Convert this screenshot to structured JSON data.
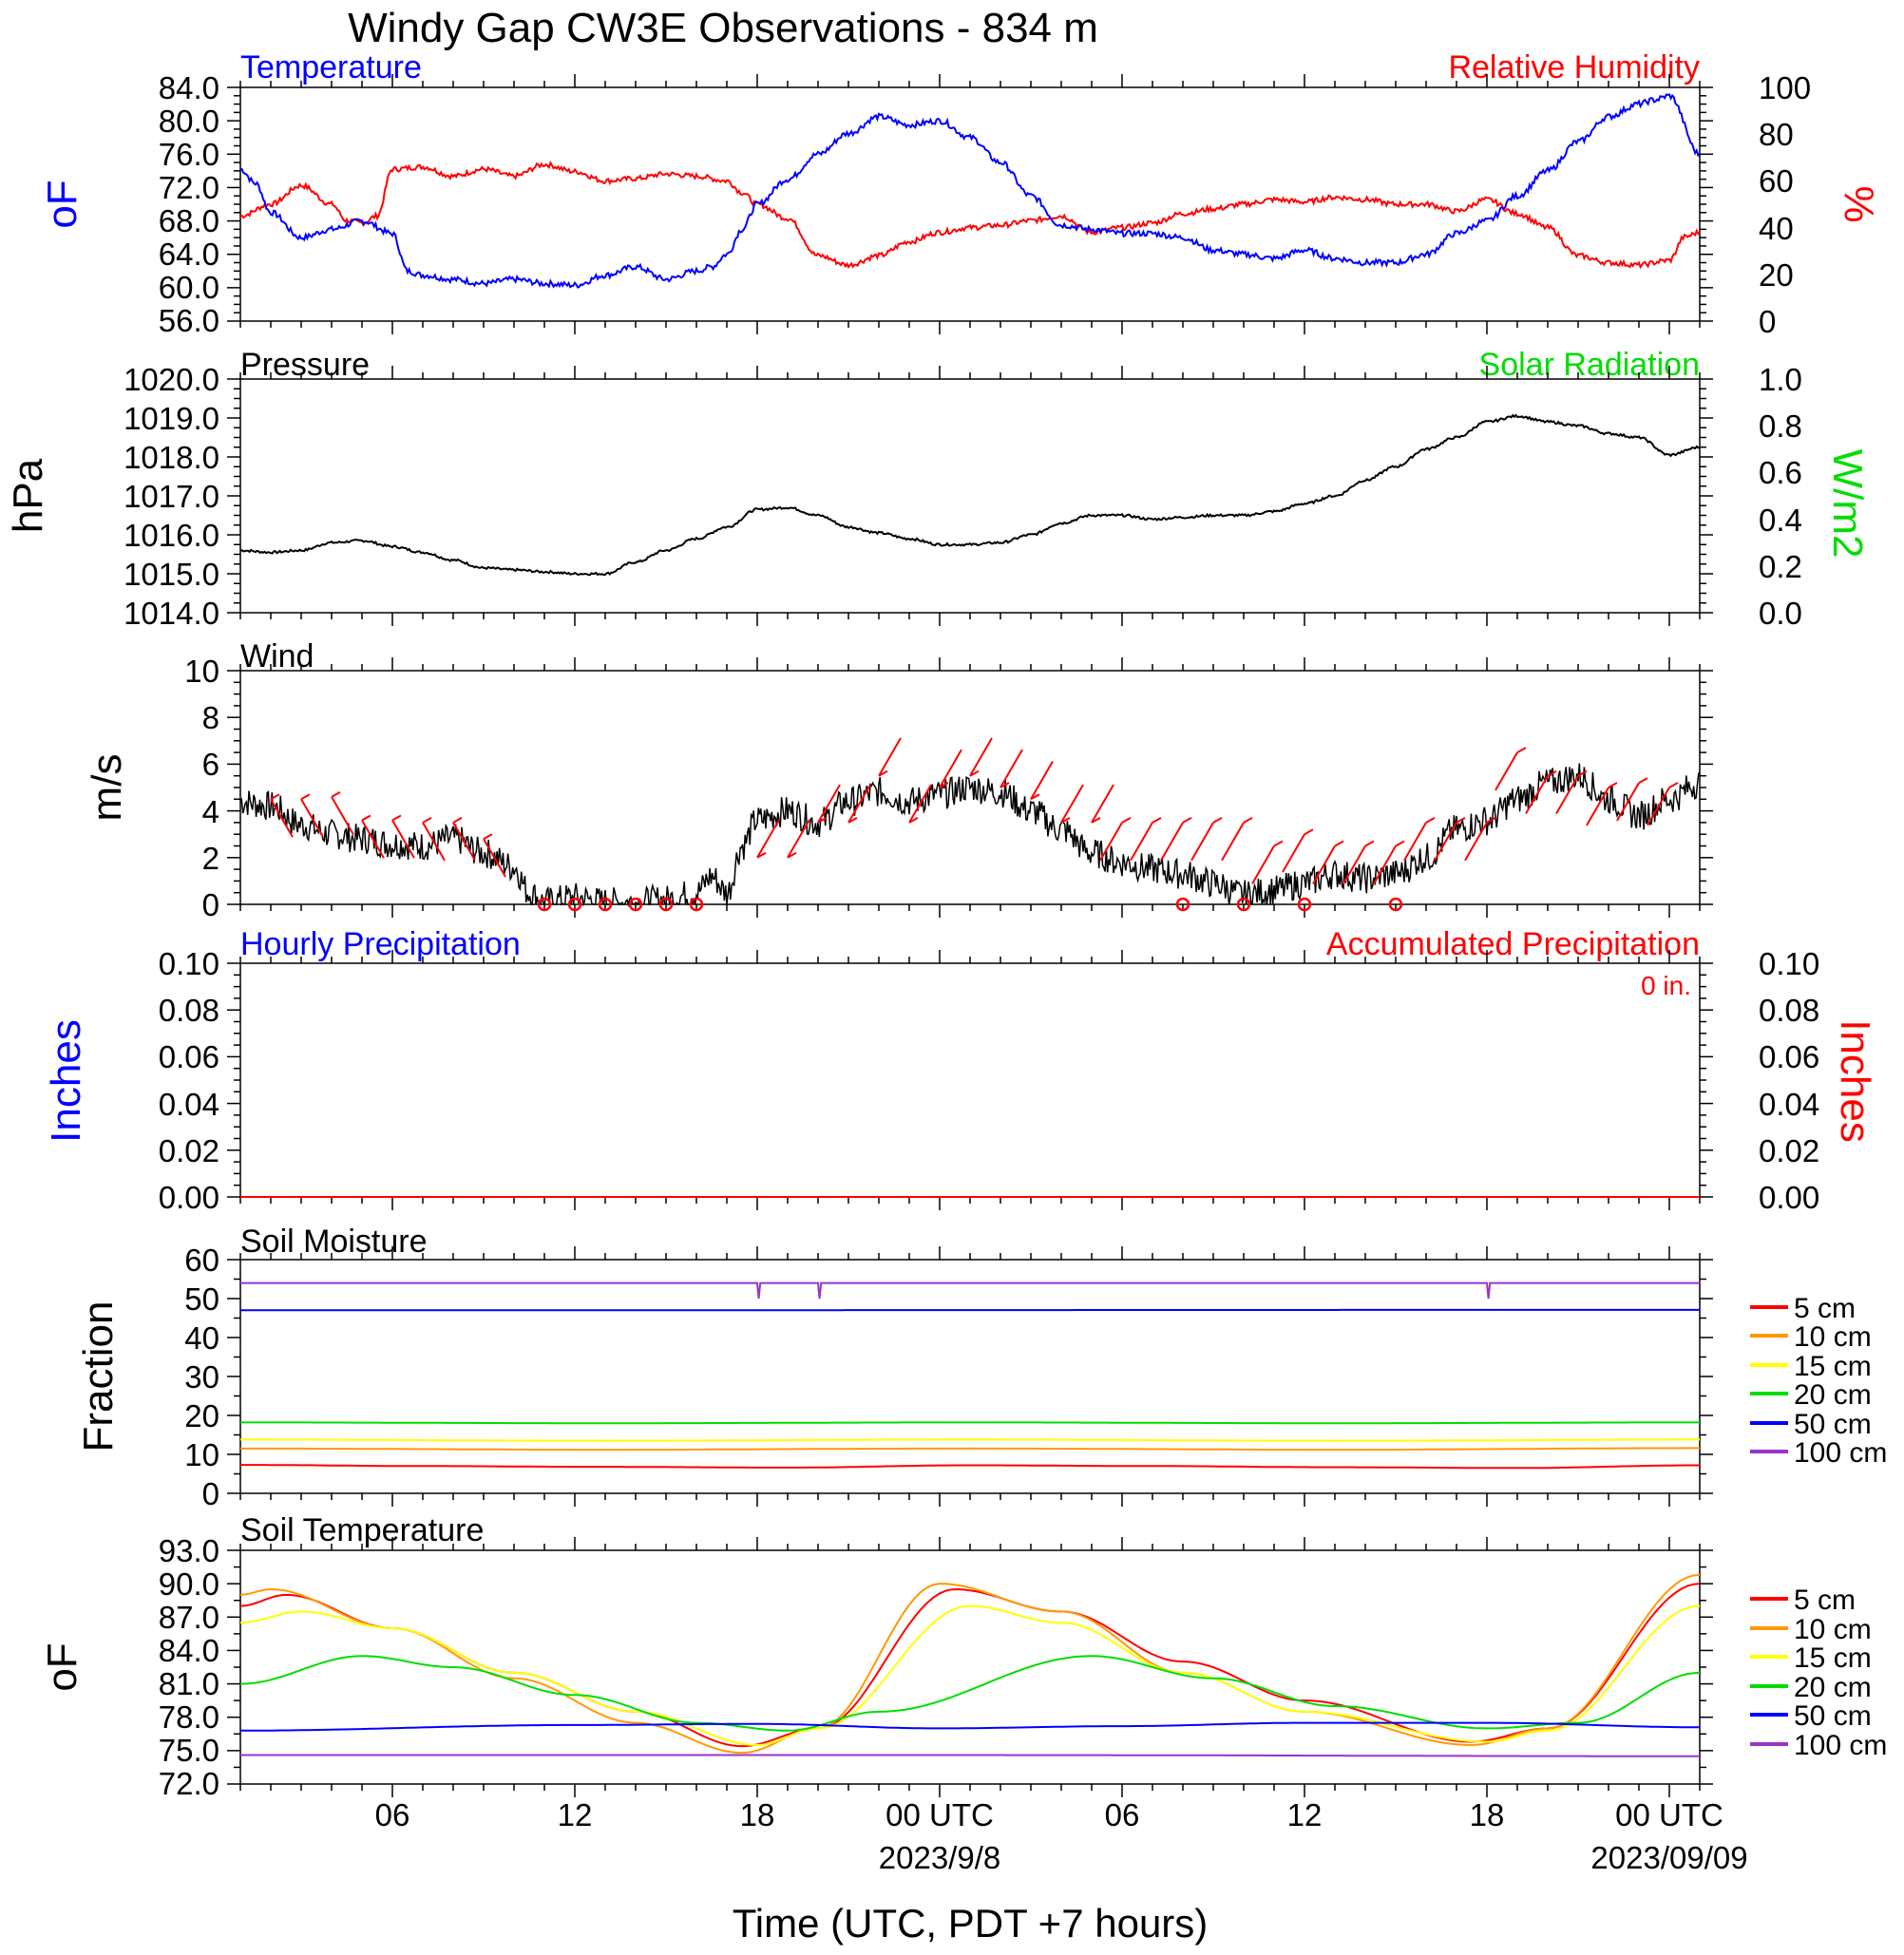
{
  "title": "Windy Gap CW3E Observations - 834 m",
  "x_axis": {
    "label": "Time (UTC, PDT +7 hours)",
    "tick_labels": [
      "06",
      "12",
      "18",
      "00 UTC",
      "06",
      "12",
      "18",
      "00 UTC"
    ],
    "tick_hours": [
      6,
      12,
      18,
      24,
      30,
      36,
      42,
      48
    ],
    "date_labels": [
      "2023/9/8",
      "2023/09/09"
    ],
    "date_label_hours": [
      24,
      48
    ],
    "range_hours": [
      1,
      49
    ]
  },
  "colors": {
    "temperature": "#0000ff",
    "relative_humidity": "#ff0000",
    "pressure": "#000000",
    "solar": "#00dd00",
    "wind_speed": "#000000",
    "wind_barb": "#ff0000",
    "hourly_precip": "#0000ff",
    "accum_precip": "#ff0000",
    "depth_5": "#ff0000",
    "depth_10": "#ff9900",
    "depth_15": "#ffff00",
    "depth_20": "#00dd00",
    "depth_50": "#0000ff",
    "depth_100": "#9933cc"
  },
  "panels": {
    "temp_rh": {
      "left_title": "Temperature",
      "right_title": "Relative Humidity",
      "left_unit": "oF",
      "right_unit": "%",
      "left_ticks": [
        "84.0",
        "80.0",
        "76.0",
        "72.0",
        "68.0",
        "64.0",
        "60.0",
        "56.0"
      ],
      "right_ticks": [
        "100",
        "80",
        "60",
        "40",
        "20",
        "0"
      ]
    },
    "pressure": {
      "left_title": "Pressure",
      "right_title": "Solar Radiation",
      "left_unit": "hPa",
      "right_unit": "W/m2",
      "left_ticks": [
        "1020.0",
        "1019.0",
        "1018.0",
        "1017.0",
        "1016.0",
        "1015.0",
        "1014.0"
      ],
      "right_ticks": [
        "1.0",
        "0.8",
        "0.6",
        "0.4",
        "0.2",
        "0.0"
      ]
    },
    "wind": {
      "left_title": "Wind",
      "left_unit": "m/s",
      "left_ticks": [
        "10",
        "8",
        "6",
        "4",
        "2",
        "0"
      ]
    },
    "precip": {
      "left_title": "Hourly Precipitation",
      "right_title": "Accumulated Precipitation",
      "total_label": "0 in.",
      "left_unit": "Inches",
      "right_unit": "Inches",
      "left_ticks": [
        "0.10",
        "0.08",
        "0.06",
        "0.04",
        "0.02",
        "0.00"
      ],
      "right_ticks": [
        "0.10",
        "0.08",
        "0.06",
        "0.04",
        "0.02",
        "0.00"
      ]
    },
    "soil_moisture": {
      "left_title": "Soil Moisture",
      "left_unit": "Fraction",
      "left_ticks": [
        "60",
        "50",
        "40",
        "30",
        "20",
        "10",
        "0"
      ],
      "legend": [
        "5 cm",
        "10 cm",
        "15 cm",
        "20 cm",
        "50 cm",
        "100 cm"
      ]
    },
    "soil_temp": {
      "left_title": "Soil Temperature",
      "left_unit": "oF",
      "left_ticks": [
        "93.0",
        "90.0",
        "87.0",
        "84.0",
        "81.0",
        "78.0",
        "75.0",
        "72.0"
      ],
      "legend": [
        "5 cm",
        "10 cm",
        "15 cm",
        "20 cm",
        "50 cm",
        "100 cm"
      ]
    }
  },
  "chart_data": [
    {
      "type": "line",
      "title": "Temperature",
      "x_unit": "hours since 2023-09-07 00 UTC",
      "ylabel": "oF",
      "ylim": [
        56,
        84
      ],
      "y2label": "%",
      "y2lim": [
        0,
        100
      ],
      "series": [
        {
          "name": "Temperature",
          "axis": "left",
          "x": [
            1,
            1.5,
            2,
            3,
            4,
            5,
            6,
            6.5,
            7,
            8,
            9,
            10,
            11,
            12,
            13,
            14,
            15,
            16,
            16.5,
            17,
            17.5,
            18,
            19,
            20,
            21,
            22,
            23,
            24,
            25,
            26,
            27,
            28,
            29,
            30,
            31,
            32,
            33,
            34,
            35,
            36,
            37,
            38,
            39,
            40,
            41,
            42,
            43,
            44,
            45,
            46,
            47,
            47.5,
            48,
            49
          ],
          "values": [
            74.2,
            72.5,
            69,
            66,
            67,
            68,
            66.5,
            62,
            61.5,
            61,
            60.5,
            61,
            60.5,
            60.3,
            61.5,
            62.5,
            61,
            62,
            62.5,
            64,
            67,
            70,
            73,
            76,
            78.5,
            80.5,
            79.5,
            80,
            78,
            75,
            71,
            67.5,
            67,
            66.5,
            66.5,
            66,
            64.5,
            64,
            63.5,
            64.5,
            63.5,
            63,
            63,
            64,
            66.5,
            68,
            71,
            74,
            77.5,
            80.5,
            82,
            82.5,
            83,
            76
          ]
        },
        {
          "name": "Relative Humidity",
          "axis": "right",
          "x": [
            1,
            2,
            3,
            4,
            4.5,
            5,
            5.5,
            6,
            7,
            8,
            9,
            10,
            11,
            12,
            13,
            14,
            15,
            16,
            17,
            17.5,
            18,
            19,
            20,
            21,
            22,
            23,
            24,
            25,
            26,
            27,
            28,
            29,
            30,
            31,
            32,
            33,
            34,
            35,
            36,
            37,
            38,
            39,
            40,
            41,
            42,
            43,
            44,
            45,
            46,
            47,
            48,
            48.5,
            49
          ],
          "values": [
            45,
            50,
            58,
            50,
            43,
            42,
            45,
            65,
            66,
            62,
            65,
            62,
            67,
            64,
            60,
            61,
            63,
            62,
            60,
            55,
            50,
            44,
            28,
            24,
            28,
            34,
            38,
            40,
            41,
            43,
            45,
            38,
            40,
            42,
            46,
            48,
            50,
            52,
            51,
            53,
            52,
            50,
            50,
            47,
            52,
            46,
            40,
            28,
            25,
            24,
            26,
            36,
            38
          ]
        }
      ]
    },
    {
      "type": "line",
      "title": "Pressure",
      "x_unit": "hours since 2023-09-07 00 UTC",
      "ylabel": "hPa",
      "ylim": [
        1014,
        1020
      ],
      "y2label": "W/m2",
      "y2lim": [
        0,
        1
      ],
      "series": [
        {
          "name": "Pressure",
          "axis": "left",
          "x": [
            1,
            2,
            3,
            4,
            5,
            6,
            7,
            8,
            9,
            10,
            11,
            12,
            13,
            14,
            15,
            16,
            17,
            18,
            19,
            20,
            21,
            22,
            23,
            24,
            25,
            26,
            27,
            28,
            29,
            30,
            31,
            32,
            33,
            34,
            35,
            36,
            37,
            38,
            39,
            40,
            41,
            42,
            43,
            44,
            45,
            46,
            47,
            48,
            49
          ],
          "values": [
            1015.6,
            1015.55,
            1015.6,
            1015.8,
            1015.85,
            1015.7,
            1015.55,
            1015.35,
            1015.15,
            1015.1,
            1015.05,
            1015.0,
            1015.0,
            1015.3,
            1015.6,
            1015.9,
            1016.2,
            1016.65,
            1016.7,
            1016.5,
            1016.2,
            1016.05,
            1015.9,
            1015.75,
            1015.75,
            1015.8,
            1016.0,
            1016.3,
            1016.5,
            1016.5,
            1016.4,
            1016.45,
            1016.5,
            1016.5,
            1016.6,
            1016.8,
            1017.0,
            1017.4,
            1017.75,
            1018.2,
            1018.5,
            1018.9,
            1019.05,
            1018.9,
            1018.8,
            1018.6,
            1018.5,
            1018.05,
            1018.25
          ]
        }
      ]
    },
    {
      "type": "line",
      "title": "Wind",
      "x_unit": "hours since 2023-09-07 00 UTC",
      "ylabel": "m/s",
      "ylim": [
        0,
        10
      ],
      "series": [
        {
          "name": "Wind",
          "x": [
            1,
            2,
            3,
            4,
            5,
            6,
            7,
            8,
            9,
            10,
            10.5,
            11,
            12,
            13,
            14,
            15,
            16,
            16.5,
            17,
            17.5,
            18,
            19,
            20,
            21,
            22,
            23,
            24,
            25,
            26,
            27,
            28,
            29,
            30,
            31,
            32,
            33,
            34,
            35,
            36,
            37,
            38,
            39,
            40,
            41,
            42,
            43,
            44,
            45,
            46,
            47,
            48,
            49
          ],
          "values": [
            4.4,
            4.2,
            3.4,
            3.0,
            2.8,
            2.6,
            2.5,
            2.8,
            2.2,
            1.6,
            0.5,
            0.1,
            0.3,
            0.1,
            0.1,
            0.2,
            0.5,
            1.2,
            0.5,
            2.5,
            3.6,
            4.0,
            3.5,
            4.4,
            4.8,
            4.4,
            4.7,
            5.0,
            4.8,
            4.0,
            3.2,
            2.2,
            1.8,
            1.5,
            1.3,
            0.9,
            0.4,
            0.6,
            0.9,
            1.3,
            1.1,
            1.3,
            2.0,
            3.2,
            3.6,
            4.5,
            5.2,
            5.5,
            4.5,
            3.8,
            4.5,
            5.2
          ]
        },
        {
          "name": "barbs",
          "type": "wind_barb",
          "x": [
            2,
            3,
            4,
            5,
            6,
            7,
            8,
            9,
            18,
            19,
            20,
            21,
            22,
            23,
            24,
            25,
            26,
            27,
            28,
            29,
            30,
            31,
            32,
            33,
            34,
            35,
            36,
            37,
            38,
            39,
            40,
            41,
            42,
            43,
            44,
            45,
            46,
            47,
            48
          ],
          "values": [
            4.5,
            4.5,
            4.6,
            3.6,
            3.6,
            3.5,
            3.5,
            2.8,
            2.0,
            2.0,
            3.5,
            3.5,
            5.5,
            3.5,
            5.0,
            5.5,
            5.0,
            4.5,
            3.5,
            3.5,
            3.5,
            3.5,
            3.5,
            3.5,
            3.5,
            2.5,
            3.0,
            2.5,
            2.5,
            2.5,
            3.5,
            3.5,
            3.5,
            6.5,
            5.5,
            5.5,
            5.0,
            5.2,
            5.0
          ]
        },
        {
          "name": "calm",
          "type": "calm_marker",
          "x": [
            11,
            12,
            13,
            14,
            15,
            16,
            32,
            34,
            36,
            39
          ],
          "values": [
            0,
            0,
            0,
            0,
            0,
            0,
            0,
            0,
            0,
            0
          ]
        }
      ]
    },
    {
      "type": "line",
      "title": "Hourly Precipitation",
      "x_unit": "hours since 2023-09-07 00 UTC",
      "ylabel": "Inches",
      "ylim": [
        0,
        0.1
      ],
      "y2label": "Inches",
      "y2lim": [
        0,
        0.1
      ],
      "series": [
        {
          "name": "Hourly Precipitation",
          "axis": "left",
          "x": [
            1,
            49
          ],
          "values": [
            0,
            0
          ]
        },
        {
          "name": "Accumulated Precipitation",
          "axis": "right",
          "x": [
            1,
            49
          ],
          "values": [
            0,
            0
          ]
        }
      ]
    },
    {
      "type": "line",
      "title": "Soil Moisture",
      "x_unit": "hours since 2023-09-07 00 UTC",
      "ylabel": "Fraction",
      "ylim": [
        0,
        60
      ],
      "series": [
        {
          "name": "5 cm",
          "x": [
            1,
            7,
            13,
            19,
            25,
            31,
            37,
            43,
            49
          ],
          "values": [
            7.3,
            7.0,
            6.8,
            6.6,
            7.2,
            7.0,
            6.7,
            6.5,
            7.2
          ]
        },
        {
          "name": "10 cm",
          "x": [
            1,
            13,
            25,
            37,
            49
          ],
          "values": [
            11.5,
            11.2,
            11.5,
            11.2,
            11.6
          ]
        },
        {
          "name": "15 cm",
          "x": [
            1,
            13,
            25,
            37,
            49
          ],
          "values": [
            13.8,
            13.5,
            13.8,
            13.5,
            13.8
          ]
        },
        {
          "name": "20 cm",
          "x": [
            1,
            13,
            25,
            37,
            49
          ],
          "values": [
            18.2,
            18.0,
            18.2,
            18.0,
            18.2
          ]
        },
        {
          "name": "50 cm",
          "x": [
            1,
            49
          ],
          "values": [
            47.0,
            47.1
          ]
        },
        {
          "name": "100 cm",
          "x": [
            1,
            18,
            18.05,
            18.1,
            20,
            20.05,
            20.1,
            42,
            42.05,
            42.1,
            49
          ],
          "values": [
            54,
            54,
            50,
            54,
            54,
            50,
            54,
            54,
            50,
            54,
            54
          ]
        }
      ]
    },
    {
      "type": "line",
      "title": "Soil Temperature",
      "x_unit": "hours since 2023-09-07 00 UTC",
      "ylabel": "oF",
      "ylim": [
        72,
        93
      ],
      "series": [
        {
          "name": "5 cm",
          "x": [
            1,
            2.5,
            6,
            10,
            14,
            17.5,
            20,
            24.5,
            28,
            32,
            36,
            41.5,
            44,
            49
          ],
          "values": [
            88,
            89,
            86,
            82,
            78.5,
            75.4,
            77,
            89.5,
            87.5,
            83,
            79.5,
            75.8,
            77,
            90
          ]
        },
        {
          "name": "10 cm",
          "x": [
            1,
            2,
            6,
            10,
            14,
            17.5,
            20,
            24,
            28,
            32,
            36,
            41.5,
            44,
            49
          ],
          "values": [
            89,
            89.5,
            86,
            81.5,
            77.5,
            74.8,
            77,
            90,
            87.5,
            82,
            78.5,
            75.5,
            77,
            90.8
          ]
        },
        {
          "name": "15 cm",
          "x": [
            1,
            3,
            6,
            10,
            14,
            18,
            20,
            25,
            28,
            32,
            36,
            42,
            44,
            49
          ],
          "values": [
            86.5,
            87.5,
            86,
            82,
            78.5,
            75.5,
            77,
            88,
            86.5,
            82,
            78.5,
            75.8,
            76.8,
            88
          ]
        },
        {
          "name": "20 cm",
          "x": [
            1,
            5,
            8,
            12,
            16,
            19,
            22,
            29,
            33,
            37,
            42,
            45,
            49
          ],
          "values": [
            81,
            83.5,
            82.5,
            80,
            77.5,
            76.8,
            78.5,
            83.5,
            81.5,
            79,
            77,
            77.5,
            82
          ]
        },
        {
          "name": "50 cm",
          "x": [
            1,
            12,
            18,
            24,
            30,
            36,
            42,
            49
          ],
          "values": [
            76.8,
            77.3,
            77.4,
            77.0,
            77.2,
            77.5,
            77.5,
            77.1
          ]
        },
        {
          "name": "100 cm",
          "x": [
            1,
            25,
            49
          ],
          "values": [
            74.6,
            74.6,
            74.5
          ]
        }
      ]
    }
  ]
}
